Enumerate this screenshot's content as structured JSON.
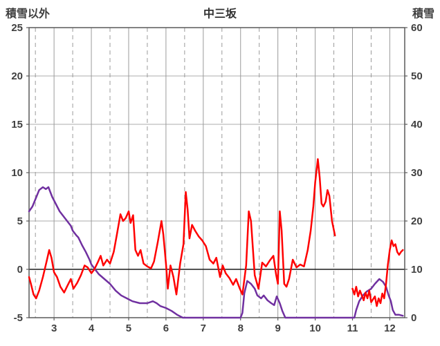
{
  "header": {
    "left_axis_title": "積雪以外",
    "title": "中三坂",
    "right_axis_title": "積雪"
  },
  "colors": {
    "red_series": "#ff0000",
    "purple_series": "#7030a0",
    "h_grid": "#ababab",
    "v_grid": "#9a9a9a",
    "frame": "#595959",
    "zero_line": "#1a1a1a",
    "text": "#3f3f3f",
    "background": "#ffffff"
  },
  "chart_data": {
    "type": "line",
    "title": "中三坂",
    "x_axis": {
      "min": 2.33,
      "max": 12.4,
      "labels": [
        "3",
        "4",
        "5",
        "6",
        "7",
        "8",
        "9",
        "10",
        "11",
        "12"
      ],
      "label_positions": [
        3,
        4,
        5,
        6,
        7,
        8,
        9,
        10,
        11,
        12
      ],
      "solid_gridlines": [
        3,
        4,
        5,
        6,
        7,
        8,
        9,
        10,
        11,
        12
      ],
      "dashed_gridlines": [
        2.5,
        3.5,
        4.5,
        5.5,
        6.5,
        7.5,
        8.5,
        9.5,
        10.5,
        11.5
      ]
    },
    "left_axis": {
      "title": "積雪以外",
      "min": -5,
      "max": 25,
      "ticks": [
        25,
        20,
        15,
        10,
        5,
        0,
        -5
      ]
    },
    "right_axis": {
      "title": "積雪",
      "min": 0,
      "max": 60,
      "ticks": [
        60,
        50,
        40,
        30,
        20,
        10,
        0
      ]
    },
    "zero_line_left_value": 0,
    "grid_on": true,
    "legend": "none",
    "series": [
      {
        "name": "積雪",
        "axis": "right",
        "color": "#7030a0",
        "width": 2.5,
        "segments": [
          [
            [
              2.33,
              22
            ],
            [
              2.42,
              23
            ],
            [
              2.5,
              24.5
            ],
            [
              2.6,
              26.4
            ],
            [
              2.7,
              27
            ],
            [
              2.78,
              26.6
            ],
            [
              2.85,
              27
            ],
            [
              2.95,
              25
            ],
            [
              3.05,
              23.5
            ],
            [
              3.15,
              22
            ],
            [
              3.25,
              21
            ],
            [
              3.35,
              20
            ],
            [
              3.45,
              19
            ],
            [
              3.5,
              18
            ],
            [
              3.6,
              17
            ],
            [
              3.65,
              16.6
            ],
            [
              3.75,
              15
            ],
            [
              3.85,
              13.6
            ],
            [
              3.95,
              12
            ],
            [
              4.0,
              11
            ],
            [
              4.1,
              10
            ],
            [
              4.2,
              9
            ],
            [
              4.35,
              8
            ],
            [
              4.5,
              7
            ],
            [
              4.65,
              5.6
            ],
            [
              4.8,
              4.6
            ],
            [
              4.95,
              4
            ],
            [
              5.1,
              3.4
            ],
            [
              5.3,
              3
            ],
            [
              5.5,
              3
            ],
            [
              5.65,
              3.4
            ],
            [
              5.75,
              3
            ],
            [
              5.85,
              2.4
            ],
            [
              6.0,
              2
            ],
            [
              6.15,
              1.4
            ],
            [
              6.3,
              0.6
            ],
            [
              6.45,
              0
            ],
            [
              6.8,
              0
            ],
            [
              7.2,
              0
            ],
            [
              7.6,
              0
            ],
            [
              8.0,
              0
            ],
            [
              8.05,
              1
            ],
            [
              8.1,
              5
            ],
            [
              8.18,
              7.6
            ],
            [
              8.28,
              7
            ],
            [
              8.38,
              6
            ],
            [
              8.45,
              4.6
            ],
            [
              8.55,
              4
            ],
            [
              8.62,
              4.6
            ],
            [
              8.72,
              3.6
            ],
            [
              8.82,
              3
            ],
            [
              8.9,
              2.6
            ],
            [
              8.97,
              4.4
            ],
            [
              9.05,
              3
            ],
            [
              9.12,
              1.4
            ],
            [
              9.2,
              0
            ],
            [
              9.6,
              0
            ],
            [
              10.0,
              0
            ],
            [
              10.4,
              0
            ],
            [
              10.8,
              0
            ],
            [
              11.05,
              0
            ],
            [
              11.1,
              1.6
            ],
            [
              11.18,
              3.4
            ],
            [
              11.28,
              4.6
            ],
            [
              11.38,
              5.4
            ],
            [
              11.5,
              6
            ],
            [
              11.6,
              7
            ],
            [
              11.72,
              8
            ],
            [
              11.82,
              7.4
            ],
            [
              11.9,
              6.4
            ],
            [
              11.97,
              4.6
            ],
            [
              12.03,
              3.4
            ],
            [
              12.08,
              1.6
            ],
            [
              12.15,
              0.6
            ],
            [
              12.25,
              0.6
            ],
            [
              12.35,
              0.4
            ]
          ]
        ]
      },
      {
        "name": "積雪以外",
        "axis": "left",
        "color": "#ff0000",
        "width": 2.5,
        "segments": [
          [
            [
              2.33,
              -0.8
            ],
            [
              2.38,
              -1.5
            ],
            [
              2.45,
              -2.6
            ],
            [
              2.52,
              -3
            ],
            [
              2.6,
              -2.2
            ],
            [
              2.7,
              -0.8
            ],
            [
              2.8,
              0.8
            ],
            [
              2.87,
              2
            ],
            [
              2.93,
              1.2
            ],
            [
              3.0,
              -0.3
            ],
            [
              3.08,
              -0.8
            ],
            [
              3.17,
              -1.8
            ],
            [
              3.27,
              -2.4
            ],
            [
              3.37,
              -1.6
            ],
            [
              3.45,
              -1
            ],
            [
              3.52,
              -2
            ],
            [
              3.62,
              -1.4
            ],
            [
              3.72,
              -0.6
            ],
            [
              3.82,
              0.4
            ],
            [
              3.9,
              0.2
            ],
            [
              4.0,
              -0.4
            ],
            [
              4.08,
              0
            ],
            [
              4.18,
              0.8
            ],
            [
              4.25,
              1.4
            ],
            [
              4.32,
              0.4
            ],
            [
              4.42,
              1
            ],
            [
              4.5,
              0.6
            ],
            [
              4.6,
              1.8
            ],
            [
              4.68,
              3.5
            ],
            [
              4.78,
              5.7
            ],
            [
              4.85,
              5
            ],
            [
              4.92,
              5.3
            ],
            [
              5.0,
              6
            ],
            [
              5.05,
              4.8
            ],
            [
              5.12,
              5.6
            ],
            [
              5.18,
              2
            ],
            [
              5.25,
              1.4
            ],
            [
              5.32,
              2
            ],
            [
              5.4,
              0.6
            ],
            [
              5.5,
              0.3
            ],
            [
              5.6,
              0.1
            ],
            [
              5.68,
              0.8
            ],
            [
              5.78,
              2.8
            ],
            [
              5.88,
              5
            ],
            [
              5.93,
              3.6
            ],
            [
              6.0,
              0.6
            ],
            [
              6.05,
              -2
            ],
            [
              6.12,
              0.4
            ],
            [
              6.2,
              -0.8
            ],
            [
              6.28,
              -2.6
            ],
            [
              6.38,
              0.6
            ],
            [
              6.47,
              2.6
            ],
            [
              6.53,
              8
            ],
            [
              6.58,
              6.2
            ],
            [
              6.63,
              3.2
            ],
            [
              6.7,
              4.6
            ],
            [
              6.78,
              4
            ],
            [
              6.88,
              3.4
            ],
            [
              6.97,
              3
            ],
            [
              7.07,
              2.4
            ],
            [
              7.17,
              1
            ],
            [
              7.27,
              0.6
            ],
            [
              7.35,
              1.2
            ],
            [
              7.45,
              -0.8
            ],
            [
              7.52,
              0.4
            ],
            [
              7.6,
              -0.4
            ],
            [
              7.7,
              -0.9
            ],
            [
              7.8,
              -1.6
            ],
            [
              7.88,
              -1
            ],
            [
              7.97,
              -1.9
            ],
            [
              8.05,
              -2.6
            ],
            [
              8.15,
              0.4
            ],
            [
              8.22,
              6
            ],
            [
              8.28,
              5
            ],
            [
              8.38,
              -0.6
            ],
            [
              8.48,
              -2
            ],
            [
              8.58,
              0.7
            ],
            [
              8.68,
              0.3
            ],
            [
              8.78,
              0.9
            ],
            [
              8.88,
              1.4
            ],
            [
              8.95,
              -0.5
            ],
            [
              9.0,
              -1.5
            ],
            [
              9.05,
              6
            ],
            [
              9.1,
              4
            ],
            [
              9.17,
              -1.5
            ],
            [
              9.23,
              -1.8
            ],
            [
              9.3,
              -1
            ],
            [
              9.4,
              1
            ],
            [
              9.5,
              0.2
            ],
            [
              9.6,
              0.5
            ],
            [
              9.7,
              0.3
            ],
            [
              9.8,
              2
            ],
            [
              9.88,
              4
            ],
            [
              9.95,
              6.5
            ],
            [
              10.0,
              9
            ],
            [
              10.07,
              11.4
            ],
            [
              10.12,
              9.5
            ],
            [
              10.17,
              6.8
            ],
            [
              10.22,
              6.5
            ],
            [
              10.28,
              7
            ],
            [
              10.33,
              8.2
            ],
            [
              10.38,
              7.6
            ],
            [
              10.45,
              5
            ],
            [
              10.53,
              3.5
            ]
          ],
          [
            [
              11.0,
              -2
            ],
            [
              11.05,
              -2.6
            ],
            [
              11.1,
              -1.8
            ],
            [
              11.15,
              -2.8
            ],
            [
              11.2,
              -2.2
            ],
            [
              11.3,
              -3.2
            ],
            [
              11.35,
              -2.4
            ],
            [
              11.4,
              -3
            ],
            [
              11.45,
              -2.2
            ],
            [
              11.5,
              -3.4
            ],
            [
              11.6,
              -2.8
            ],
            [
              11.65,
              -3.8
            ],
            [
              11.7,
              -3
            ],
            [
              11.75,
              -3.5
            ],
            [
              11.8,
              -2.5
            ],
            [
              11.85,
              -3
            ],
            [
              11.9,
              -1.5
            ],
            [
              11.95,
              0.5
            ],
            [
              12.0,
              2
            ],
            [
              12.05,
              3
            ],
            [
              12.1,
              2.4
            ],
            [
              12.15,
              2.6
            ],
            [
              12.2,
              1.8
            ],
            [
              12.25,
              1.5
            ],
            [
              12.3,
              1.8
            ],
            [
              12.35,
              2
            ]
          ]
        ]
      }
    ]
  }
}
